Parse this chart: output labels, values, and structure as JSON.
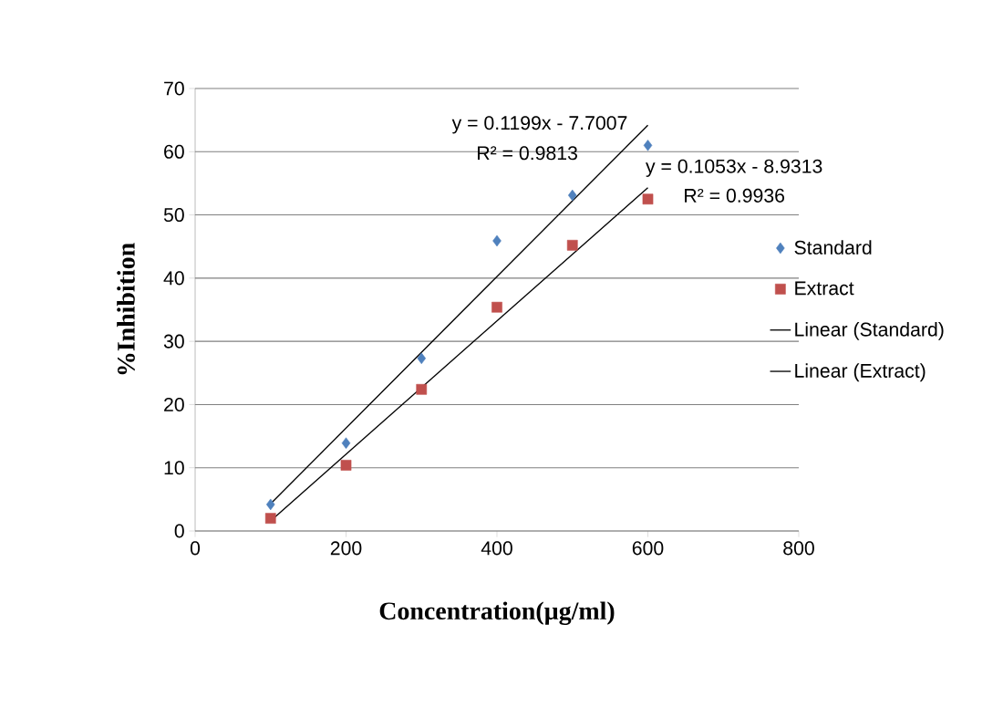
{
  "chart_data": {
    "type": "scatter",
    "xlabel": "Concentration(µg/ml)",
    "ylabel": "%Inhibition",
    "xlim": [
      0,
      800
    ],
    "xticks": [
      0,
      200,
      400,
      600,
      800
    ],
    "ylim": [
      0,
      70
    ],
    "yticks": [
      0,
      10,
      20,
      30,
      40,
      50,
      60,
      70
    ],
    "grid": "y",
    "legend": "right",
    "series": [
      {
        "name": "Standard",
        "marker": "diamond",
        "color": "#4f81bd",
        "x": [
          100,
          200,
          300,
          400,
          500,
          600
        ],
        "values": [
          4.2,
          13.9,
          27.3,
          45.9,
          53.1,
          61.0
        ]
      },
      {
        "name": "Extract",
        "marker": "square",
        "color": "#c0504d",
        "x": [
          100,
          200,
          300,
          400,
          500,
          600
        ],
        "values": [
          2.0,
          10.4,
          22.4,
          35.4,
          45.2,
          52.5
        ]
      },
      {
        "name": "Linear (Standard)",
        "type": "line",
        "marker": "none",
        "color": "#000000",
        "x": [
          100,
          600
        ],
        "values": [
          4.3,
          64.2
        ]
      },
      {
        "name": "Linear (Extract)",
        "type": "line",
        "marker": "none",
        "color": "#000000",
        "x": [
          100,
          600
        ],
        "values": [
          1.6,
          54.3
        ]
      }
    ],
    "annotations": [
      "y = 0.1199x - 7.7007",
      "R² = 0.9813",
      "y = 0.1053x - 8.9313",
      "R² = 0.9936"
    ]
  }
}
